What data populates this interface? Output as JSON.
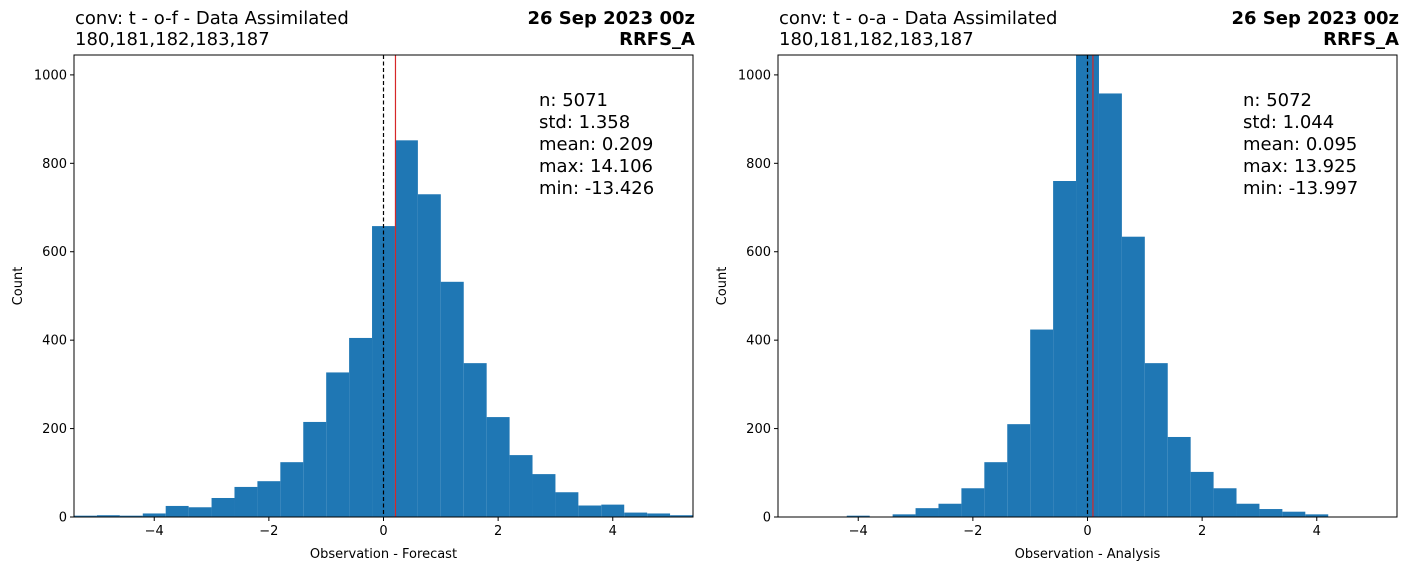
{
  "chart_data": [
    {
      "type": "bar",
      "title": "conv: t - o-f - Data Assimilated",
      "subtitle": "180,181,182,183,187",
      "date": "26 Sep 2023 00z",
      "model": "RRFS_A",
      "xlabel": "Observation - Forecast",
      "ylabel": "Count",
      "xlim": [
        -5.4,
        5.4
      ],
      "ylim": [
        0,
        1045
      ],
      "xticks": [
        -4,
        -2,
        0,
        2,
        4
      ],
      "yticks": [
        0,
        200,
        400,
        600,
        800,
        1000
      ],
      "bins": [
        [
          -5.4,
          -5.0,
          3
        ],
        [
          -5.0,
          -4.6,
          4
        ],
        [
          -4.6,
          -4.2,
          3
        ],
        [
          -4.2,
          -3.8,
          8
        ],
        [
          -3.8,
          -3.4,
          25
        ],
        [
          -3.4,
          -3.0,
          22
        ],
        [
          -3.0,
          -2.6,
          43
        ],
        [
          -2.6,
          -2.2,
          68
        ],
        [
          -2.2,
          -1.8,
          81
        ],
        [
          -1.8,
          -1.4,
          124
        ],
        [
          -1.4,
          -1.0,
          215
        ],
        [
          -1.0,
          -0.6,
          327
        ],
        [
          -0.6,
          -0.2,
          405
        ],
        [
          -0.2,
          0.2,
          658
        ],
        [
          0.2,
          0.6,
          852
        ],
        [
          0.6,
          1.0,
          730
        ],
        [
          1.0,
          1.4,
          532
        ],
        [
          1.4,
          1.8,
          348
        ],
        [
          1.8,
          2.2,
          226
        ],
        [
          2.2,
          2.6,
          140
        ],
        [
          2.6,
          3.0,
          97
        ],
        [
          3.0,
          3.4,
          56
        ],
        [
          3.4,
          3.8,
          26
        ],
        [
          3.8,
          4.2,
          28
        ],
        [
          4.2,
          4.6,
          10
        ],
        [
          4.6,
          5.0,
          8
        ],
        [
          5.0,
          5.4,
          4
        ]
      ],
      "zero_line_x": 0,
      "mean_line_x": 0.209,
      "stats": [
        "n: 5071",
        "std: 1.358",
        "mean: 0.209",
        "max: 14.106",
        "min: -13.426"
      ],
      "bar_color": "#1f77b4",
      "mean_line_color": "#d62728"
    },
    {
      "type": "bar",
      "title": "conv: t - o-a - Data Assimilated",
      "subtitle": "180,181,182,183,187",
      "date": "26 Sep 2023 00z",
      "model": "RRFS_A",
      "xlabel": "Observation - Analysis",
      "ylabel": "Count",
      "xlim": [
        -5.4,
        5.4
      ],
      "ylim": [
        0,
        1045
      ],
      "xticks": [
        -4,
        -2,
        0,
        2,
        4
      ],
      "yticks": [
        0,
        200,
        400,
        600,
        800,
        1000
      ],
      "bins": [
        [
          -4.2,
          -3.8,
          3
        ],
        [
          -3.8,
          -3.4,
          1
        ],
        [
          -3.4,
          -3.0,
          6
        ],
        [
          -3.0,
          -2.6,
          20
        ],
        [
          -2.6,
          -2.2,
          30
        ],
        [
          -2.2,
          -1.8,
          65
        ],
        [
          -1.8,
          -1.4,
          124
        ],
        [
          -1.4,
          -1.0,
          210
        ],
        [
          -1.0,
          -0.6,
          424
        ],
        [
          -0.6,
          -0.2,
          760
        ],
        [
          -0.2,
          0.2,
          1045
        ],
        [
          0.2,
          0.6,
          958
        ],
        [
          0.6,
          1.0,
          634
        ],
        [
          1.0,
          1.4,
          348
        ],
        [
          1.4,
          1.8,
          181
        ],
        [
          1.8,
          2.2,
          102
        ],
        [
          2.2,
          2.6,
          65
        ],
        [
          2.6,
          3.0,
          30
        ],
        [
          3.0,
          3.4,
          18
        ],
        [
          3.4,
          3.8,
          12
        ],
        [
          3.8,
          4.2,
          6
        ]
      ],
      "zero_line_x": 0,
      "mean_line_x": 0.095,
      "stats": [
        "n: 5072",
        "std: 1.044",
        "mean: 0.095",
        "max: 13.925",
        "min: -13.997"
      ],
      "bar_color": "#1f77b4",
      "mean_line_color": "#d62728"
    }
  ]
}
